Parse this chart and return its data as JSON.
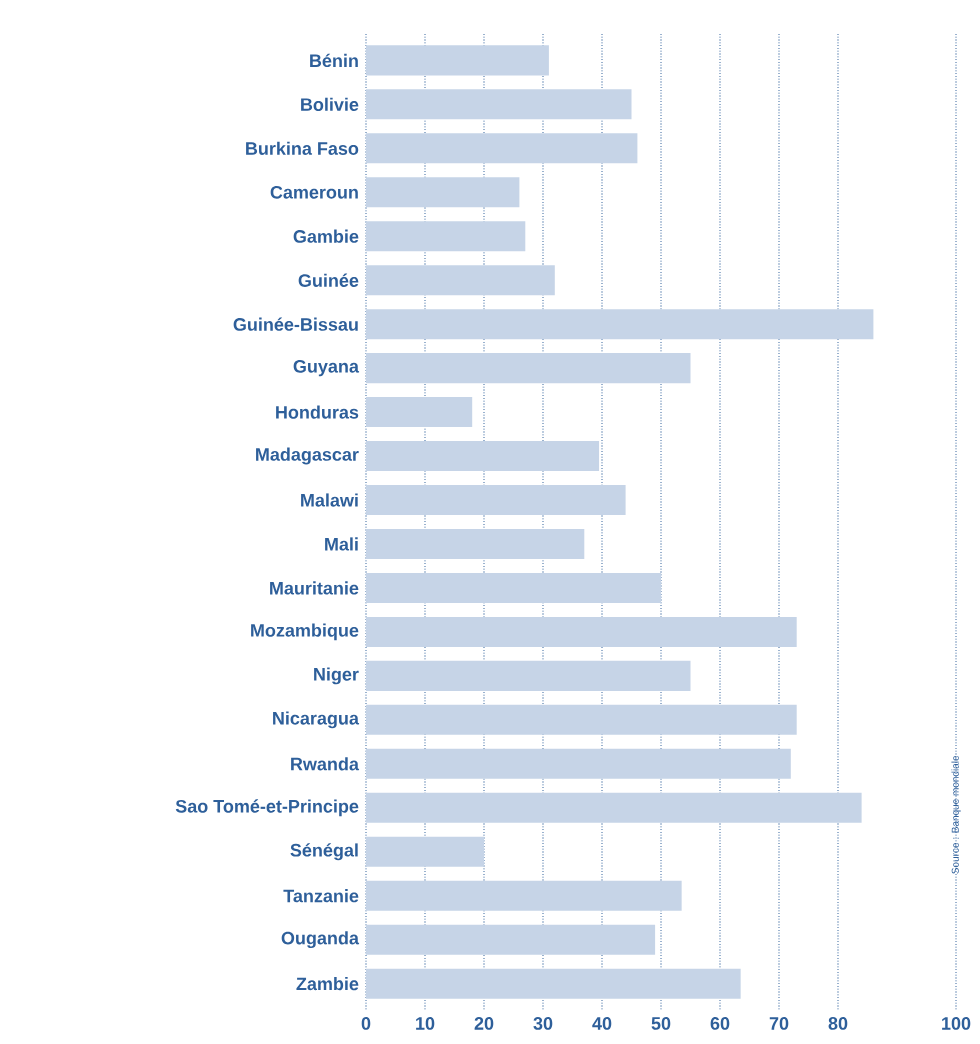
{
  "chart_data": {
    "type": "bar",
    "orientation": "horizontal",
    "categories": [
      "Bénin",
      "Bolivie",
      "Burkina Faso",
      "Cameroun",
      "Gambie",
      "Guinée",
      "Guinée-Bissau",
      "Guyana",
      "Honduras",
      "Madagascar",
      "Malawi",
      "Mali",
      "Mauritanie",
      "Mozambique",
      "Niger",
      "Nicaragua",
      "Rwanda",
      "Sao Tomé-et-Principe",
      "Sénégal",
      "Tanzanie",
      "Ouganda",
      "Zambie"
    ],
    "values": [
      31,
      45,
      46,
      26,
      27,
      32,
      86,
      55,
      18,
      39.5,
      44,
      37,
      50,
      73,
      55,
      73,
      72,
      84,
      20,
      53.5,
      49,
      63.5
    ],
    "color": "#c6d4e7",
    "xlim": [
      0,
      100
    ],
    "xticks": [
      0,
      10,
      20,
      30,
      40,
      50,
      60,
      70,
      80,
      100
    ],
    "grid": "x",
    "annotations": [
      "Source : Banque mondiale"
    ]
  }
}
